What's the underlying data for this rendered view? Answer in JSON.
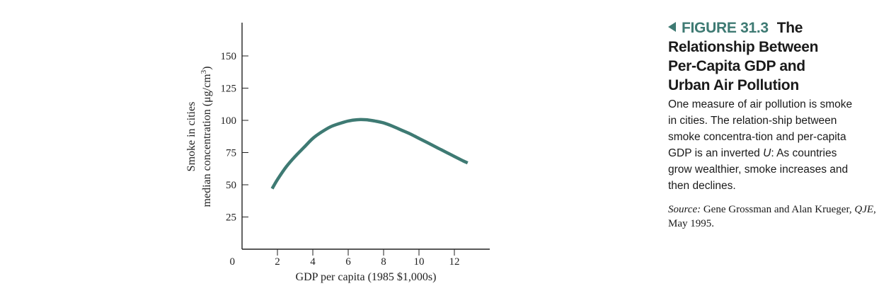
{
  "chart_data": {
    "type": "line",
    "xlabel": "GDP per capita (1985 $1,000s)",
    "ylabel_line1": "Smoke in cities",
    "ylabel_line2_prefix": "median concentration (μg/cm",
    "ylabel_line2_sup": "3",
    "ylabel_line2_suffix": ")",
    "origin_label": "0",
    "x_ticks": [
      2,
      4,
      6,
      8,
      10,
      12
    ],
    "y_ticks": [
      25,
      50,
      75,
      100,
      125,
      150
    ],
    "xlim": [
      0,
      14
    ],
    "ylim": [
      0,
      175
    ],
    "grid": false,
    "line_color": "#3e7a73",
    "series": [
      {
        "x": [
          1.7,
          2.0,
          2.5,
          3.0,
          3.5,
          4.0,
          4.5,
          5.0,
          5.5,
          6.0,
          6.5,
          7.0,
          7.5,
          8.0,
          8.5,
          9.0,
          9.5,
          10.0,
          10.5,
          11.0,
          11.5,
          12.0,
          12.5,
          12.75
        ],
        "y": [
          47,
          54,
          64,
          72,
          79,
          86,
          91,
          95,
          97.5,
          99.5,
          100.5,
          100.5,
          99.5,
          98,
          95.5,
          92.5,
          89.5,
          86,
          82.5,
          79,
          75.5,
          72,
          68.5,
          67
        ]
      }
    ]
  },
  "caption": {
    "figure_label": "FIGURE 31.3",
    "title_line1": "The",
    "title_line2": "Relationship Between",
    "title_line3": "Per-Capita GDP and",
    "title_line4": "Urban Air Pollution",
    "body_before": "One measure of air pollution is smoke in cities. The relation-ship between smoke concentra-tion and per-capita GDP is an inverted ",
    "body_italic": "U",
    "body_after": ": As countries grow wealthier, smoke increases and then declines.",
    "source_label": "Source:",
    "source_before": " Gene Grossman and Alan Krueger, ",
    "source_journal": "QJE",
    "source_after": ", May 1995."
  }
}
